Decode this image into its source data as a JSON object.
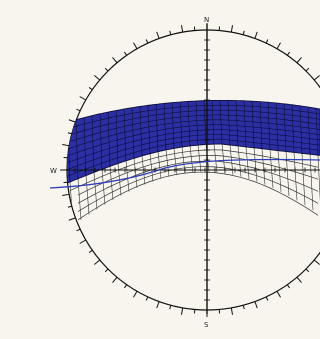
{
  "title": "",
  "labels": {
    "north": "N",
    "south": "S",
    "west": "W"
  },
  "colors": {
    "background": "#f7f5ee",
    "outline": "#111111",
    "band_fill": "#2b2fa2",
    "band_mesh": "#0a0a33",
    "outline_band": "#333333",
    "line_accent": "#2d3fb8"
  }
}
